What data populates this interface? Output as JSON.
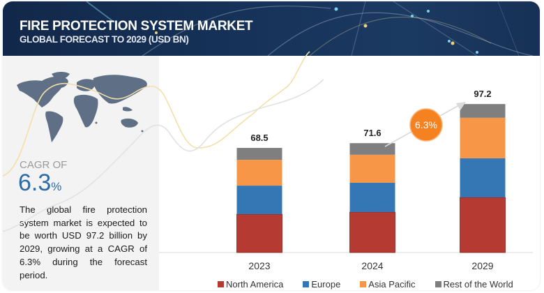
{
  "header": {
    "title": "FIRE PROTECTION SYSTEM MARKET",
    "subtitle": "GLOBAL FORECAST TO 2029 (USD BN)"
  },
  "sidebar": {
    "map_icon": "world-map-icon",
    "cagr_label": "CAGR OF",
    "cagr_value": "6.3",
    "cagr_unit": "%",
    "description": "The global fire protection system market is expected to be worth USD 97.2 billion by 2029, growing at a CAGR of 6.3% during the forecast period."
  },
  "colors": {
    "north_america": "#b53a32",
    "europe": "#3577b5",
    "asia_pacific": "#f79646",
    "rest_of_world": "#7f7f7f",
    "cagr_bubble": "#f58220",
    "header_bg": "#163258",
    "cagr_text": "#2d6aa6"
  },
  "chart_data": {
    "type": "bar",
    "stacked": true,
    "title": "FIRE PROTECTION SYSTEM MARKET",
    "subtitle": "GLOBAL FORECAST TO 2029 (USD BN)",
    "xlabel": "",
    "ylabel": "",
    "categories": [
      "2023",
      "2024",
      "2029"
    ],
    "totals": [
      "68.5",
      "71.6",
      "97.2"
    ],
    "series": [
      {
        "name": "North America",
        "color": "#b53a32",
        "values": [
          25.1,
          26.5,
          36.1
        ]
      },
      {
        "name": "Europe",
        "color": "#3577b5",
        "values": [
          18.7,
          19.2,
          25.6
        ]
      },
      {
        "name": "Asia Pacific",
        "color": "#f79646",
        "values": [
          16.9,
          18.3,
          26.5
        ]
      },
      {
        "name": "Rest of the World",
        "color": "#7f7f7f",
        "values": [
          7.8,
          7.6,
          9.0
        ]
      }
    ],
    "ylim": [
      0,
      100
    ],
    "grid": false,
    "legend_position": "bottom",
    "annotation": {
      "label": "6.3%",
      "from": "2024",
      "to": "2029"
    }
  }
}
